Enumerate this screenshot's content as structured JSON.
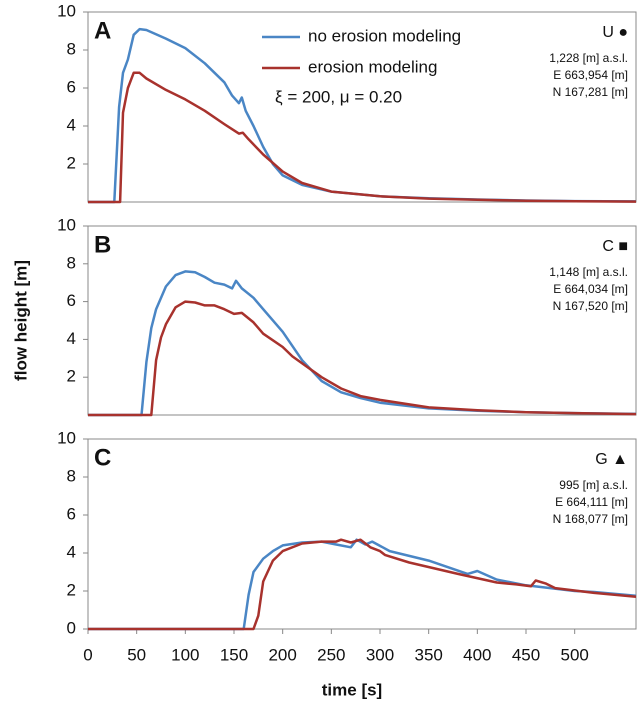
{
  "chart_data": [
    {
      "type": "line",
      "panel_label": "A",
      "station_label": "U ●",
      "info": [
        "1,228 [m] a.s.l.",
        "E 663,954 [m]",
        "N 167,281 [m]"
      ],
      "legend_note": "ξ = 200, μ = 0.20",
      "xlim": [
        0,
        563
      ],
      "ylim": [
        0,
        10
      ],
      "yticks": [
        2,
        4,
        6,
        8,
        10
      ],
      "series": [
        {
          "name": "no erosion modeling",
          "color": "#4a86c5",
          "x": [
            0,
            27,
            32,
            36,
            41,
            47,
            53,
            60,
            80,
            100,
            120,
            140,
            148,
            155,
            158,
            162,
            170,
            180,
            190,
            200,
            220,
            250,
            300,
            350,
            400,
            450,
            500,
            563
          ],
          "values": [
            0,
            0,
            5,
            6.8,
            7.5,
            8.8,
            9.1,
            9.05,
            8.6,
            8.1,
            7.3,
            6.3,
            5.6,
            5.2,
            5.5,
            4.8,
            4.0,
            2.9,
            2.0,
            1.4,
            0.9,
            0.55,
            0.3,
            0.2,
            0.13,
            0.08,
            0.05,
            0.03
          ]
        },
        {
          "name": "erosion modeling",
          "color": "#a8322d",
          "x": [
            0,
            33,
            36,
            41,
            47,
            53,
            60,
            80,
            100,
            120,
            140,
            155,
            159,
            165,
            180,
            200,
            220,
            250,
            300,
            350,
            400,
            450,
            500,
            563
          ],
          "values": [
            0,
            0,
            4.7,
            6,
            6.8,
            6.8,
            6.5,
            5.9,
            5.4,
            4.8,
            4.1,
            3.6,
            3.65,
            3.3,
            2.5,
            1.6,
            1.0,
            0.55,
            0.3,
            0.18,
            0.12,
            0.07,
            0.04,
            0.02
          ]
        }
      ]
    },
    {
      "type": "line",
      "panel_label": "B",
      "station_label": "C ■",
      "info": [
        "1,148 [m] a.s.l.",
        "E 664,034 [m]",
        "N 167,520 [m]"
      ],
      "ylabel": "flow height [m]",
      "xlim": [
        0,
        563
      ],
      "ylim": [
        0,
        10
      ],
      "yticks": [
        2,
        4,
        6,
        8,
        10
      ],
      "series": [
        {
          "name": "no erosion modeling",
          "color": "#4a86c5",
          "x": [
            0,
            55,
            60,
            65,
            70,
            80,
            90,
            100,
            110,
            120,
            130,
            140,
            148,
            152,
            158,
            170,
            180,
            200,
            220,
            240,
            260,
            280,
            300,
            350,
            400,
            450,
            500,
            563
          ],
          "values": [
            0,
            0,
            2.8,
            4.6,
            5.6,
            6.8,
            7.4,
            7.6,
            7.55,
            7.3,
            7.0,
            6.9,
            6.7,
            7.1,
            6.7,
            6.2,
            5.6,
            4.4,
            2.9,
            1.8,
            1.2,
            0.9,
            0.65,
            0.35,
            0.22,
            0.15,
            0.1,
            0.06
          ]
        },
        {
          "name": "erosion modeling",
          "color": "#a8322d",
          "x": [
            0,
            65,
            70,
            75,
            80,
            90,
            100,
            110,
            120,
            130,
            140,
            150,
            158,
            170,
            180,
            200,
            210,
            240,
            260,
            280,
            300,
            350,
            400,
            450,
            500,
            563
          ],
          "values": [
            0,
            0,
            2.9,
            4.1,
            4.8,
            5.7,
            6.0,
            5.95,
            5.8,
            5.8,
            5.6,
            5.35,
            5.4,
            4.9,
            4.3,
            3.6,
            3.1,
            2.0,
            1.4,
            1.0,
            0.8,
            0.4,
            0.25,
            0.15,
            0.1,
            0.05
          ]
        }
      ]
    },
    {
      "type": "line",
      "panel_label": "C",
      "station_label": "G ▲",
      "info": [
        "995 [m] a.s.l.",
        "E 664,111 [m]",
        "N 168,077 [m]"
      ],
      "xlabel": "time [s]",
      "xlim": [
        0,
        563
      ],
      "ylim": [
        0,
        10
      ],
      "yticks": [
        0,
        2,
        4,
        6,
        8,
        10
      ],
      "xticks": [
        0,
        50,
        100,
        150,
        200,
        250,
        300,
        350,
        400,
        450,
        500
      ],
      "series": [
        {
          "name": "no erosion modeling",
          "color": "#4a86c5",
          "x": [
            0,
            160,
            165,
            170,
            180,
            190,
            200,
            220,
            240,
            255,
            270,
            276,
            285,
            292,
            310,
            350,
            390,
            400,
            420,
            450,
            500,
            520,
            563
          ],
          "values": [
            0,
            0,
            1.8,
            3.0,
            3.7,
            4.1,
            4.4,
            4.55,
            4.6,
            4.45,
            4.3,
            4.7,
            4.45,
            4.6,
            4.1,
            3.6,
            2.9,
            3.05,
            2.6,
            2.3,
            2.0,
            1.95,
            1.75
          ]
        },
        {
          "name": "erosion modeling",
          "color": "#a8322d",
          "x": [
            0,
            170,
            175,
            180,
            190,
            200,
            220,
            240,
            255,
            260,
            270,
            280,
            290,
            300,
            305,
            330,
            380,
            420,
            440,
            455,
            460,
            470,
            480,
            520,
            563
          ],
          "values": [
            0,
            0,
            0.7,
            2.5,
            3.6,
            4.1,
            4.5,
            4.6,
            4.6,
            4.7,
            4.55,
            4.7,
            4.3,
            4.1,
            3.9,
            3.5,
            2.9,
            2.45,
            2.35,
            2.25,
            2.55,
            2.4,
            2.15,
            1.9,
            1.7
          ]
        }
      ]
    }
  ]
}
